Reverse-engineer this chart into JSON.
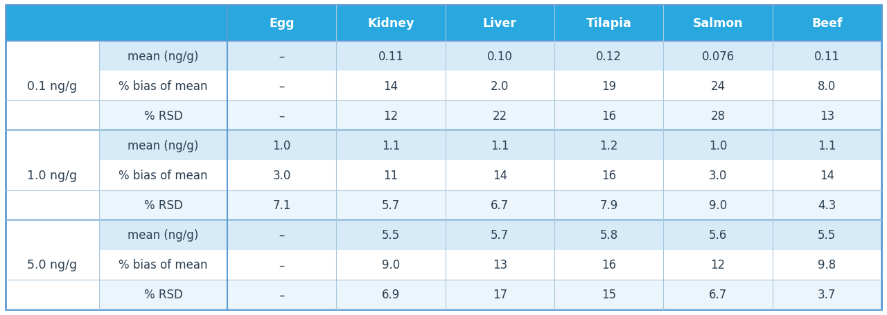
{
  "header_cols": [
    "",
    "",
    "Egg",
    "Kidney",
    "Liver",
    "Tilapia",
    "Salmon",
    "Beef"
  ],
  "spike_levels": [
    "0.1 ng/g",
    "1.0 ng/g",
    "5.0 ng/g"
  ],
  "row_labels": [
    "mean (ng/g)",
    "% bias of mean",
    "% RSD"
  ],
  "data": {
    "0.1 ng/g": {
      "mean (ng/g)": [
        "–",
        "0.11",
        "0.10",
        "0.12",
        "0.076",
        "0.11"
      ],
      "% bias of mean": [
        "–",
        "14",
        "2.0",
        "19",
        "24",
        "8.0"
      ],
      "% RSD": [
        "–",
        "12",
        "22",
        "16",
        "28",
        "13"
      ]
    },
    "1.0 ng/g": {
      "mean (ng/g)": [
        "1.0",
        "1.1",
        "1.1",
        "1.2",
        "1.0",
        "1.1"
      ],
      "% bias of mean": [
        "3.0",
        "11",
        "14",
        "16",
        "3.0",
        "14"
      ],
      "% RSD": [
        "7.1",
        "5.7",
        "6.7",
        "7.9",
        "9.0",
        "4.3"
      ]
    },
    "5.0 ng/g": {
      "mean (ng/g)": [
        "–",
        "5.5",
        "5.7",
        "5.8",
        "5.6",
        "5.5"
      ],
      "% bias of mean": [
        "–",
        "9.0",
        "13",
        "16",
        "12",
        "9.8"
      ],
      "% RSD": [
        "–",
        "6.9",
        "17",
        "15",
        "6.7",
        "3.7"
      ]
    }
  },
  "header_bg": "#29A8E0",
  "header_text": "#FFFFFF",
  "row1_bg": "#D6EAF8",
  "row2_bg": "#FFFFFF",
  "row3_bg": "#EBF5FB",
  "spike_bg": "#FFFFFF",
  "border_thick": "#5B9BD5",
  "border_thin": "#A8C8DC",
  "text_color": "#2C3E50",
  "header_font_size": 12.5,
  "cell_font_size": 12,
  "spike_font_size": 12.5
}
